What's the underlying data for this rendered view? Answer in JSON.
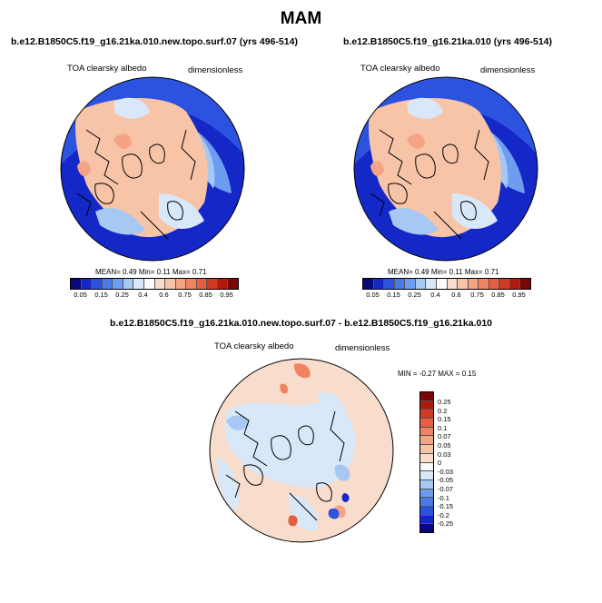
{
  "title": "MAM",
  "panels": [
    {
      "title": "b.e12.B1850C5.f19_g16.21ka.010.new.topo.surf.07 (yrs 496-514)",
      "variable": "TOA clearsky albedo",
      "units": "dimensionless",
      "stats": {
        "mean_label": "MEAN=",
        "mean": "0.49",
        "min_label": "Min=",
        "min": "0.11",
        "max_label": "Max=",
        "max": "0.71"
      }
    },
    {
      "title": "b.e12.B1850C5.f19_g16.21ka.010 (yrs 496-514)",
      "variable": "TOA clearsky albedo",
      "units": "dimensionless",
      "stats": {
        "mean_label": "MEAN=",
        "mean": "0.49",
        "min_label": "Min=",
        "min": "0.11",
        "max_label": "Max=",
        "max": "0.71"
      }
    }
  ],
  "colorbar": {
    "ticks": [
      "0.05",
      "0.15",
      "0.25",
      "0.4",
      "0.6",
      "0.75",
      "0.85",
      "0.95"
    ],
    "colors": [
      "#08087a",
      "#1428c8",
      "#2c52e0",
      "#4a7ae8",
      "#6e9cf0",
      "#a8c8f4",
      "#d8e8f8",
      "#fbfbfb",
      "#f8dccc",
      "#f8c4a8",
      "#f4a484",
      "#f08462",
      "#e85e40",
      "#d03a22",
      "#b01a0c",
      "#7a0606"
    ]
  },
  "diff": {
    "title": "b.e12.B1850C5.f19_g16.21ka.010.new.topo.surf.07 - b.e12.B1850C5.f19_g16.21ka.010",
    "variable": "TOA clearsky albedo",
    "units": "dimensionless",
    "minmax": "MIN =  -0.27 MAX =   0.15",
    "colorbar": {
      "ticks": [
        "0.25",
        "0.2",
        "0.15",
        "0.1",
        "0.07",
        "0.05",
        "0.03",
        "0",
        "-0.03",
        "-0.05",
        "-0.07",
        "-0.1",
        "-0.15",
        "-0.2",
        "-0.25"
      ],
      "colors": [
        "#7a0606",
        "#b01a0c",
        "#d03a22",
        "#e85e40",
        "#f08462",
        "#f4a484",
        "#f8c4a8",
        "#f8dccc",
        "#fbfbfb",
        "#d8e8f8",
        "#a8c8f4",
        "#6e9cf0",
        "#4a7ae8",
        "#2c52e0",
        "#1428c8",
        "#08087a"
      ]
    }
  }
}
